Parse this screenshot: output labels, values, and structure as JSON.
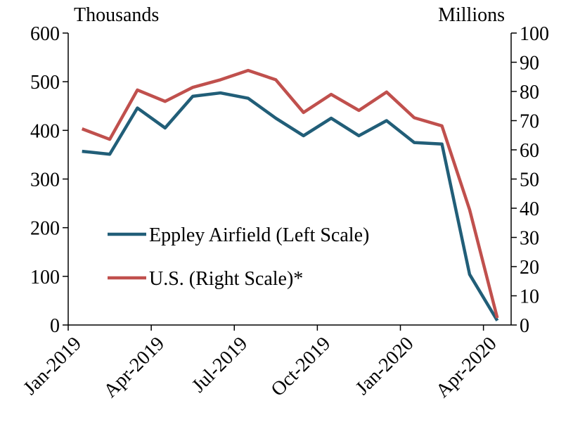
{
  "chart_data": {
    "type": "line",
    "y_unit_label": "Thousands",
    "y2_unit_label": "Millions",
    "categories": [
      "Jan-2019",
      null,
      null,
      "Apr-2019",
      null,
      null,
      "Jul-2019",
      null,
      null,
      "Oct-2019",
      null,
      null,
      "Jan-2020",
      null,
      null,
      "Apr-2020"
    ],
    "series": [
      {
        "name": "Eppley Airfield (Left Scale)",
        "color": "#215e78",
        "values": [
          357,
          351,
          446,
          405,
          470,
          477,
          466,
          425,
          389,
          425,
          389,
          420,
          375,
          372,
          104,
          9
        ]
      },
      {
        "name": "U.S. (Right Scale)*",
        "color": "#c0504d",
        "axis": "y2",
        "values": [
          67.2,
          63.6,
          80.5,
          76.6,
          81.4,
          84,
          87.2,
          84,
          72.8,
          79,
          73.5,
          79.8,
          71,
          68.2,
          39.5,
          2.4
        ]
      }
    ],
    "ylim": [
      0,
      600
    ],
    "yticks": [
      0,
      100,
      200,
      300,
      400,
      500,
      600
    ],
    "y2lim": [
      0,
      100
    ],
    "y2ticks": [
      0,
      10,
      20,
      30,
      40,
      50,
      60,
      70,
      80,
      90,
      100
    ],
    "grid": false,
    "legend": "inside-left"
  }
}
